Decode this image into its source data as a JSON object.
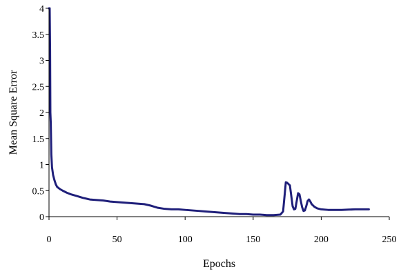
{
  "chart_data": {
    "type": "line",
    "title": "",
    "xlabel": "Epochs",
    "ylabel": "Mean Square Error",
    "xlim": [
      0,
      250
    ],
    "ylim": [
      0,
      4
    ],
    "x_ticks": [
      "0",
      "50",
      "100",
      "150",
      "200",
      "250"
    ],
    "y_ticks": [
      "0",
      "0.5",
      "1",
      "1.5",
      "2",
      "2.5",
      "3",
      "3.5",
      "4"
    ],
    "grid": false,
    "legend": "none",
    "line_color": "#1f1f7a",
    "series": [
      {
        "points": [
          [
            0.0,
            4.0
          ],
          [
            0.5,
            4.0
          ],
          [
            0.8,
            3.2
          ],
          [
            1.0,
            2.0
          ],
          [
            1.3,
            1.8
          ],
          [
            1.7,
            1.2
          ],
          [
            2.2,
            0.95
          ],
          [
            3,
            0.8
          ],
          [
            4,
            0.7
          ],
          [
            5,
            0.62
          ],
          [
            6,
            0.57
          ],
          [
            8,
            0.53
          ],
          [
            10,
            0.5
          ],
          [
            13,
            0.46
          ],
          [
            16,
            0.43
          ],
          [
            20,
            0.4
          ],
          [
            25,
            0.36
          ],
          [
            30,
            0.33
          ],
          [
            35,
            0.32
          ],
          [
            40,
            0.31
          ],
          [
            45,
            0.29
          ],
          [
            50,
            0.28
          ],
          [
            55,
            0.27
          ],
          [
            60,
            0.26
          ],
          [
            65,
            0.25
          ],
          [
            70,
            0.24
          ],
          [
            75,
            0.21
          ],
          [
            80,
            0.17
          ],
          [
            85,
            0.15
          ],
          [
            90,
            0.14
          ],
          [
            95,
            0.14
          ],
          [
            100,
            0.13
          ],
          [
            105,
            0.12
          ],
          [
            110,
            0.11
          ],
          [
            115,
            0.1
          ],
          [
            120,
            0.09
          ],
          [
            125,
            0.08
          ],
          [
            130,
            0.07
          ],
          [
            135,
            0.06
          ],
          [
            140,
            0.05
          ],
          [
            145,
            0.05
          ],
          [
            150,
            0.04
          ],
          [
            155,
            0.04
          ],
          [
            160,
            0.03
          ],
          [
            165,
            0.03
          ],
          [
            170,
            0.04
          ],
          [
            172,
            0.1
          ],
          [
            174,
            0.66
          ],
          [
            175,
            0.65
          ],
          [
            177,
            0.6
          ],
          [
            178,
            0.4
          ],
          [
            179,
            0.2
          ],
          [
            180,
            0.14
          ],
          [
            181,
            0.15
          ],
          [
            182,
            0.3
          ],
          [
            183,
            0.45
          ],
          [
            184,
            0.43
          ],
          [
            185,
            0.3
          ],
          [
            186,
            0.18
          ],
          [
            187,
            0.11
          ],
          [
            188,
            0.12
          ],
          [
            189,
            0.2
          ],
          [
            190,
            0.3
          ],
          [
            191,
            0.33
          ],
          [
            192,
            0.29
          ],
          [
            193,
            0.24
          ],
          [
            195,
            0.19
          ],
          [
            197,
            0.16
          ],
          [
            200,
            0.14
          ],
          [
            205,
            0.13
          ],
          [
            210,
            0.13
          ],
          [
            215,
            0.13
          ],
          [
            220,
            0.135
          ],
          [
            225,
            0.14
          ],
          [
            230,
            0.14
          ],
          [
            235,
            0.14
          ]
        ]
      }
    ]
  }
}
